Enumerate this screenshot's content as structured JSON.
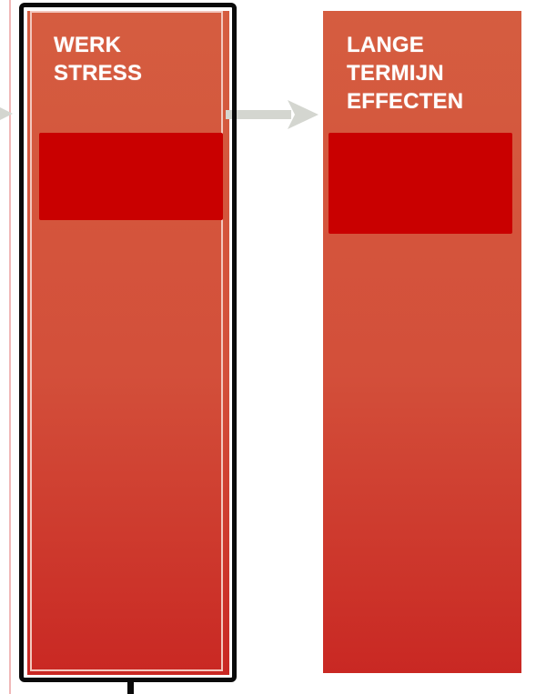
{
  "columns": {
    "left": {
      "title": "WERK\nSTRESS"
    },
    "right": {
      "title": "LANGE\nTERMIJN\nEFFECTEN"
    }
  },
  "colors": {
    "column_top": "#d55d40",
    "column_bottom": "#c92823",
    "inner_block": "#c90000",
    "title_text": "#ffffff",
    "arrow": "#d4d6d0",
    "selection_frame": "#0a0a0a",
    "edge_line": "#f0b8b8"
  },
  "icons": {
    "flow_arrow": "arrow-right-icon"
  }
}
